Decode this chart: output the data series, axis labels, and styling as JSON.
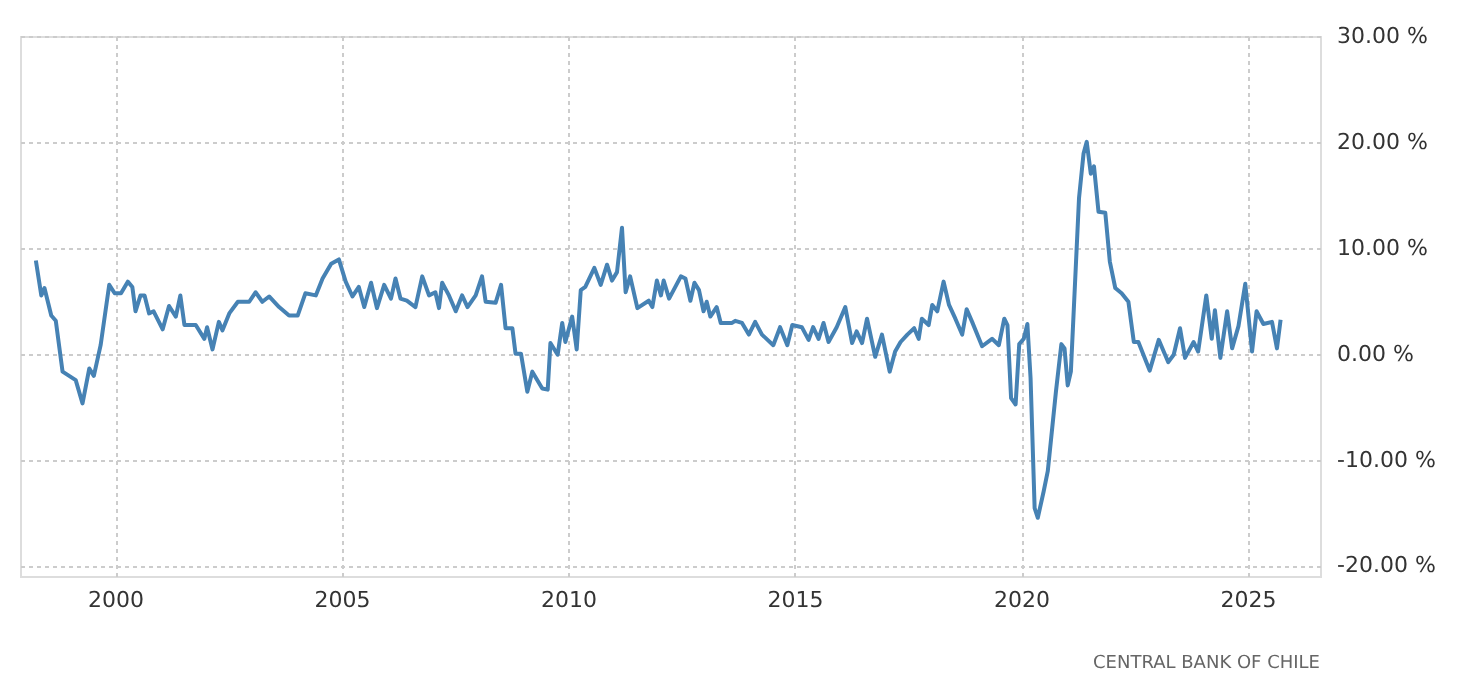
{
  "chart_data": {
    "type": "line",
    "xlim": [
      1997.9,
      2026.6
    ],
    "xticks": [
      2000,
      2005,
      2010,
      2015,
      2020,
      2025
    ],
    "ylim": [
      -21,
      30
    ],
    "yticks": [
      {
        "value": -20,
        "label": "-20.00 %"
      },
      {
        "value": -10,
        "label": "-10.00 %"
      },
      {
        "value": 0,
        "label": "0.00 %"
      },
      {
        "value": 10,
        "label": "10.00 %"
      },
      {
        "value": 20,
        "label": "20.00 %"
      },
      {
        "value": 30,
        "label": "30.00 %"
      }
    ],
    "grid": true,
    "line_style": "solid",
    "annotations": [
      "CENTRAL BANK OF CHILE"
    ],
    "x": [
      1998.25,
      1998.37,
      1998.44,
      1998.59,
      1998.69,
      1998.84,
      1999.13,
      1999.28,
      1999.43,
      1999.53,
      1999.68,
      1999.87,
      1999.99,
      2000.13,
      2000.28,
      2000.38,
      2000.45,
      2000.56,
      2000.65,
      2000.75,
      2000.85,
      2001.05,
      2001.19,
      2001.34,
      2001.44,
      2001.53,
      2001.78,
      2001.97,
      2002.03,
      2002.15,
      2002.29,
      2002.37,
      2002.52,
      2002.71,
      2002.96,
      2003.1,
      2003.25,
      2003.4,
      2003.62,
      2003.84,
      2004.03,
      2004.2,
      2004.43,
      2004.58,
      2004.77,
      2004.94,
      2005.09,
      2005.24,
      2005.38,
      2005.5,
      2005.65,
      2005.78,
      2005.94,
      2006.09,
      2006.19,
      2006.3,
      2006.44,
      2006.63,
      2006.78,
      2006.93,
      2007.07,
      2007.15,
      2007.22,
      2007.37,
      2007.52,
      2007.66,
      2007.78,
      2007.96,
      2008.1,
      2008.18,
      2008.4,
      2008.52,
      2008.62,
      2008.77,
      2008.84,
      2008.96,
      2009.1,
      2009.21,
      2009.43,
      2009.55,
      2009.61,
      2009.77,
      2009.87,
      2009.94,
      2010.09,
      2010.19,
      2010.28,
      2010.38,
      2010.58,
      2010.72,
      2010.86,
      2010.97,
      2011.08,
      2011.19,
      2011.27,
      2011.37,
      2011.53,
      2011.78,
      2011.86,
      2011.96,
      2012.05,
      2012.11,
      2012.23,
      2012.49,
      2012.59,
      2012.7,
      2012.79,
      2012.89,
      2012.99,
      2013.06,
      2013.14,
      2013.28,
      2013.37,
      2013.62,
      2013.69,
      2013.84,
      2013.99,
      2014.13,
      2014.28,
      2014.53,
      2014.68,
      2014.84,
      2014.95,
      2015.16,
      2015.31,
      2015.41,
      2015.53,
      2015.64,
      2015.75,
      2015.93,
      2016.12,
      2016.27,
      2016.37,
      2016.49,
      2016.6,
      2016.78,
      2016.93,
      2017.1,
      2017.22,
      2017.34,
      2017.49,
      2017.64,
      2017.74,
      2017.81,
      2017.96,
      2018.04,
      2018.15,
      2018.29,
      2018.41,
      2018.55,
      2018.7,
      2018.8,
      2018.92,
      2019.14,
      2019.36,
      2019.51,
      2019.63,
      2019.7,
      2019.78,
      2019.88,
      2019.96,
      2020.06,
      2020.14,
      2020.21,
      2020.3,
      2020.37,
      2020.5,
      2020.59,
      2020.77,
      2020.89,
      2020.96,
      2021.03,
      2021.1,
      2021.28,
      2021.38,
      2021.45,
      2021.54,
      2021.61,
      2021.71,
      2021.86,
      2021.96,
      2022.08,
      2022.22,
      2022.37,
      2022.49,
      2022.59,
      2022.84,
      2023.04,
      2023.18,
      2023.25,
      2023.37,
      2023.51,
      2023.62,
      2023.81,
      2023.91,
      2024.09,
      2024.21,
      2024.28,
      2024.4,
      2024.55,
      2024.66,
      2024.8,
      2024.95,
      2025.1,
      2025.2,
      2025.35,
      2025.54,
      2025.65,
      2025.73
    ],
    "series": [
      {
        "color": "#4682b4",
        "values": [
          8.8,
          5.5,
          6.2,
          3.6,
          3.1,
          -1.7,
          -2.5,
          -4.7,
          -1.4,
          -2.1,
          0.8,
          6.5,
          5.7,
          5.7,
          6.8,
          6.3,
          4.0,
          5.5,
          5.5,
          3.8,
          4.0,
          2.3,
          4.5,
          3.5,
          5.5,
          2.7,
          2.7,
          1.4,
          2.5,
          0.4,
          3.0,
          2.2,
          3.8,
          4.9,
          4.9,
          5.8,
          4.9,
          5.4,
          4.4,
          3.6,
          3.6,
          5.7,
          5.5,
          7.1,
          8.5,
          8.9,
          6.8,
          5.4,
          6.3,
          4.4,
          6.7,
          4.3,
          6.5,
          5.2,
          7.1,
          5.2,
          5.0,
          4.4,
          7.3,
          5.5,
          5.8,
          4.3,
          6.7,
          5.5,
          4.0,
          5.5,
          4.4,
          5.5,
          7.3,
          4.9,
          4.8,
          6.5,
          2.4,
          2.4,
          0.0,
          0.0,
          -3.6,
          -1.7,
          -3.3,
          -3.4,
          1.0,
          -0.1,
          2.9,
          1.1,
          3.5,
          0.4,
          6.0,
          6.3,
          8.1,
          6.5,
          8.4,
          6.9,
          7.7,
          11.9,
          5.8,
          7.3,
          4.3,
          5.0,
          4.4,
          6.9,
          5.5,
          6.9,
          5.2,
          7.3,
          7.1,
          5.0,
          6.7,
          6.0,
          4.0,
          4.9,
          3.5,
          4.4,
          2.9,
          2.9,
          3.1,
          2.9,
          1.8,
          3.0,
          1.8,
          0.8,
          2.5,
          0.8,
          2.7,
          2.5,
          1.3,
          2.5,
          1.4,
          2.9,
          1.1,
          2.5,
          4.4,
          1.0,
          2.1,
          1.0,
          3.3,
          -0.3,
          1.8,
          -1.7,
          0.2,
          1.1,
          1.8,
          2.4,
          1.4,
          3.3,
          2.7,
          4.6,
          4.0,
          6.8,
          4.6,
          3.3,
          1.8,
          4.2,
          3.0,
          0.7,
          1.4,
          0.8,
          3.3,
          2.7,
          -4.2,
          -4.8,
          0.9,
          1.4,
          2.8,
          -2.3,
          -14.6,
          -15.5,
          -13.0,
          -11.1,
          -3.6,
          0.9,
          0.5,
          -3.0,
          -1.7,
          14.7,
          18.9,
          20.0,
          17.0,
          17.7,
          13.4,
          13.3,
          8.7,
          6.2,
          5.7,
          4.9,
          1.1,
          1.1,
          -1.6,
          1.3,
          -0.1,
          -0.8,
          -0.1,
          2.4,
          -0.4,
          1.1,
          0.2,
          5.5,
          1.4,
          4.1,
          -0.4,
          4.0,
          0.5,
          2.6,
          6.6,
          0.2,
          4.0,
          2.8,
          3.0,
          0.5,
          3.2
        ]
      }
    ]
  }
}
